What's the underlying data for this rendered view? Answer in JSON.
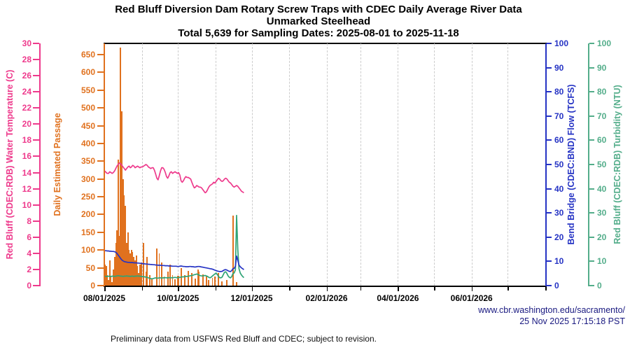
{
  "title": {
    "line1": "Red Bluff Diversion Dam Rotary Screw Traps with CDEC Daily Average River Data",
    "line2": "Unmarked Steelhead",
    "line3": "Total 5,639 for Sampling Dates: 2025-08-01 to 2025-11-18"
  },
  "footer": {
    "note": "Preliminary data from USFWS Red Bluff and CDEC; subject to revision.",
    "url": "www.cbr.washington.edu/sacramento/",
    "timestamp": "25 Nov 2025 17:15:18 PST"
  },
  "colors": {
    "temperature": "#ee3a8c",
    "passage": "#e0711e",
    "flow": "#2533c4",
    "turbidity_line": "#2fa476",
    "turbidity_axis": "#53ad8a",
    "url_text": "#191980",
    "gridline": "#cccccc",
    "frame": "#000000"
  },
  "chart_data": {
    "type": "bar+line",
    "x_axis": {
      "start_date": "2025-08-01",
      "end_date": "2026-08-01",
      "days_total": 365,
      "major_tick_labels": [
        "08/01/2025",
        "10/01/2025",
        "12/01/2025",
        "02/01/2026",
        "04/01/2026",
        "06/01/2026"
      ],
      "major_tick_day_offsets": [
        0,
        61,
        122,
        184,
        243,
        304
      ],
      "minor_tick_day_offsets": [
        31,
        92,
        153,
        212,
        273,
        334,
        365
      ],
      "gridline_day_offsets": [
        31,
        61,
        92,
        122,
        153,
        184,
        212,
        243,
        273,
        304,
        334
      ],
      "grid": "vertical-dashed"
    },
    "axes": {
      "temperature": {
        "side": "far-left",
        "label": "Red Bluff (CDEC:RDB) Water Temperature (C)",
        "min": 0,
        "max": 30,
        "ticks": [
          0,
          2,
          4,
          6,
          8,
          10,
          12,
          14,
          16,
          18,
          20,
          22,
          24,
          26,
          28,
          30
        ]
      },
      "passage": {
        "side": "left",
        "label": "Daily Estimated Passage",
        "min": 0,
        "max": 650,
        "ticks": [
          0,
          50,
          100,
          150,
          200,
          250,
          300,
          350,
          400,
          450,
          500,
          550,
          600,
          650
        ]
      },
      "flow": {
        "side": "right",
        "label": "Bend Bridge (CDEC:BND) Flow (TCFS)",
        "min": 0,
        "max": 100,
        "ticks": [
          0,
          10,
          20,
          30,
          40,
          50,
          60,
          70,
          80,
          90,
          100
        ]
      },
      "turbidity": {
        "side": "far-right",
        "label": "Red Bluff (CDEC:RDB) Turbidity (NTU)",
        "min": 0,
        "max": 100,
        "ticks": [
          0,
          10,
          20,
          30,
          40,
          50,
          60,
          70,
          80,
          90,
          100
        ]
      }
    },
    "series": {
      "passage_bars": {
        "type": "bar",
        "unit": "fish/day",
        "points_day_value": [
          [
            0,
            60
          ],
          [
            1,
            55
          ],
          [
            2,
            30
          ],
          [
            3,
            15
          ],
          [
            4,
            70
          ],
          [
            5,
            25
          ],
          [
            6,
            10
          ],
          [
            7,
            45
          ],
          [
            8,
            80
          ],
          [
            9,
            120
          ],
          [
            10,
            155
          ],
          [
            11,
            355
          ],
          [
            12,
            140
          ],
          [
            13,
            670
          ],
          [
            14,
            490
          ],
          [
            15,
            300
          ],
          [
            16,
            255
          ],
          [
            17,
            225
          ],
          [
            18,
            120
          ],
          [
            19,
            150
          ],
          [
            20,
            100
          ],
          [
            21,
            90
          ],
          [
            22,
            100
          ],
          [
            23,
            95
          ],
          [
            24,
            80
          ],
          [
            25,
            70
          ],
          [
            26,
            85
          ],
          [
            27,
            55
          ],
          [
            28,
            35
          ],
          [
            29,
            60
          ],
          [
            30,
            65
          ],
          [
            32,
            120
          ],
          [
            34,
            40
          ],
          [
            35,
            80
          ],
          [
            37,
            30
          ],
          [
            39,
            20
          ],
          [
            43,
            105
          ],
          [
            45,
            90
          ],
          [
            47,
            65
          ],
          [
            49,
            25
          ],
          [
            52,
            40
          ],
          [
            54,
            60
          ],
          [
            56,
            30
          ],
          [
            58,
            18
          ],
          [
            60,
            28
          ],
          [
            61,
            27
          ],
          [
            63,
            50
          ],
          [
            66,
            30
          ],
          [
            69,
            42
          ],
          [
            72,
            35
          ],
          [
            75,
            20
          ],
          [
            77,
            45
          ],
          [
            78,
            40
          ],
          [
            81,
            32
          ],
          [
            84,
            27
          ],
          [
            86,
            15
          ],
          [
            89,
            22
          ],
          [
            91,
            25
          ],
          [
            94,
            35
          ],
          [
            97,
            12
          ],
          [
            101,
            15
          ],
          [
            106,
            197
          ],
          [
            109,
            10
          ]
        ]
      },
      "temperature": {
        "type": "line",
        "unit": "C",
        "start_day": 0,
        "daily_values": [
          14.2,
          14.0,
          13.9,
          13.9,
          14.1,
          14.0,
          13.9,
          14.0,
          14.2,
          14.5,
          14.8,
          15.0,
          15.2,
          15.1,
          14.9,
          14.7,
          14.5,
          14.3,
          14.5,
          14.7,
          14.8,
          14.6,
          14.7,
          14.9,
          14.8,
          14.6,
          14.7,
          14.8,
          14.7,
          14.6,
          14.7,
          14.7,
          14.8,
          14.9,
          15.0,
          14.9,
          14.7,
          14.6,
          14.5,
          14.6,
          14.6,
          14.3,
          13.8,
          13.3,
          13.1,
          13.6,
          14.2,
          14.6,
          14.6,
          14.4,
          14.0,
          13.5,
          13.3,
          13.6,
          14.0,
          14.1,
          13.9,
          14.0,
          14.1,
          14.0,
          13.9,
          14.0,
          13.7,
          13.0,
          12.8,
          13.0,
          13.3,
          13.5,
          13.4,
          13.4,
          13.3,
          13.2,
          12.8,
          12.4,
          12.1,
          12.2,
          12.4,
          12.3,
          12.2,
          12.2,
          12.1,
          11.9,
          11.7,
          11.5,
          11.6,
          11.9,
          12.2,
          12.4,
          12.5,
          12.6,
          12.8,
          12.7,
          12.9,
          13.1,
          13.3,
          13.2,
          13.0,
          12.9,
          13.0,
          13.2,
          13.3,
          13.2,
          13.0,
          12.8,
          12.7,
          12.5,
          12.3,
          12.2,
          12.3,
          12.4,
          12.3,
          12.1,
          11.9,
          11.7,
          11.6,
          11.5
        ]
      },
      "flow": {
        "type": "line",
        "unit": "TCFS",
        "start_day": 0,
        "daily_values": [
          14.4,
          14.4,
          14.3,
          14.3,
          14.2,
          14.2,
          14.1,
          14.1,
          14.0,
          13.8,
          13.3,
          12.6,
          11.9,
          11.2,
          10.6,
          10.2,
          9.9,
          9.8,
          9.7,
          9.6,
          9.6,
          9.5,
          9.5,
          9.5,
          9.4,
          9.4,
          9.4,
          9.3,
          9.3,
          9.2,
          9.2,
          9.1,
          9.0,
          9.0,
          8.9,
          8.9,
          8.8,
          8.8,
          8.7,
          8.7,
          8.6,
          8.6,
          8.5,
          8.5,
          8.4,
          8.4,
          8.4,
          8.3,
          8.3,
          8.3,
          8.2,
          8.2,
          8.2,
          8.1,
          8.1,
          8.1,
          8.0,
          8.0,
          8.0,
          8.0,
          7.9,
          7.9,
          8.0,
          8.1,
          8.0,
          7.9,
          7.9,
          7.8,
          7.8,
          7.8,
          7.9,
          7.9,
          7.8,
          7.8,
          7.7,
          7.7,
          7.8,
          7.9,
          7.9,
          7.8,
          7.7,
          7.6,
          7.5,
          7.4,
          7.3,
          7.2,
          7.1,
          7.0,
          6.9,
          6.8,
          6.6,
          6.4,
          6.2,
          6.0,
          5.9,
          5.8,
          5.8,
          5.9,
          6.2,
          6.5,
          6.6,
          6.4,
          6.1,
          5.9,
          5.8,
          6.2,
          7.0,
          7.1,
          8.0,
          12.2,
          10.5,
          8.5,
          7.8,
          7.3,
          7.0,
          6.6
        ]
      },
      "turbidity": {
        "type": "line",
        "unit": "NTU",
        "start_day": 0,
        "daily_values": [
          3.9,
          3.8,
          3.8,
          3.9,
          3.8,
          3.8,
          3.9,
          3.9,
          3.8,
          3.9,
          4.0,
          4.1,
          4.0,
          3.9,
          3.9,
          3.8,
          3.9,
          3.9,
          4.0,
          3.9,
          3.9,
          3.8,
          3.9,
          3.9,
          3.8,
          3.9,
          3.9,
          4.0,
          3.9,
          3.9,
          3.8,
          3.8,
          3.7,
          3.6,
          3.5,
          3.4,
          3.2,
          3.0,
          2.9,
          2.8,
          2.9,
          3.1,
          3.2,
          3.1,
          3.1,
          3.2,
          3.2,
          3.1,
          3.2,
          3.2,
          3.3,
          3.2,
          3.2,
          3.3,
          3.3,
          3.2,
          3.3,
          3.3,
          3.4,
          3.3,
          3.3,
          3.3,
          3.4,
          3.5,
          3.6,
          3.6,
          3.7,
          3.8,
          3.8,
          3.9,
          4.0,
          4.1,
          4.2,
          4.3,
          4.5,
          4.6,
          4.8,
          4.6,
          4.3,
          4.1,
          4.0,
          4.0,
          4.1,
          4.2,
          4.0,
          3.8,
          3.4,
          3.2,
          3.5,
          4.0,
          4.4,
          4.8,
          5.2,
          4.6,
          3.8,
          3.3,
          3.2,
          3.5,
          4.5,
          5.5,
          5.7,
          5.0,
          4.0,
          3.4,
          3.2,
          3.8,
          5.0,
          5.2,
          6.5,
          29.0,
          15.0,
          7.0,
          5.2,
          4.4,
          3.8,
          3.3
        ]
      }
    }
  }
}
